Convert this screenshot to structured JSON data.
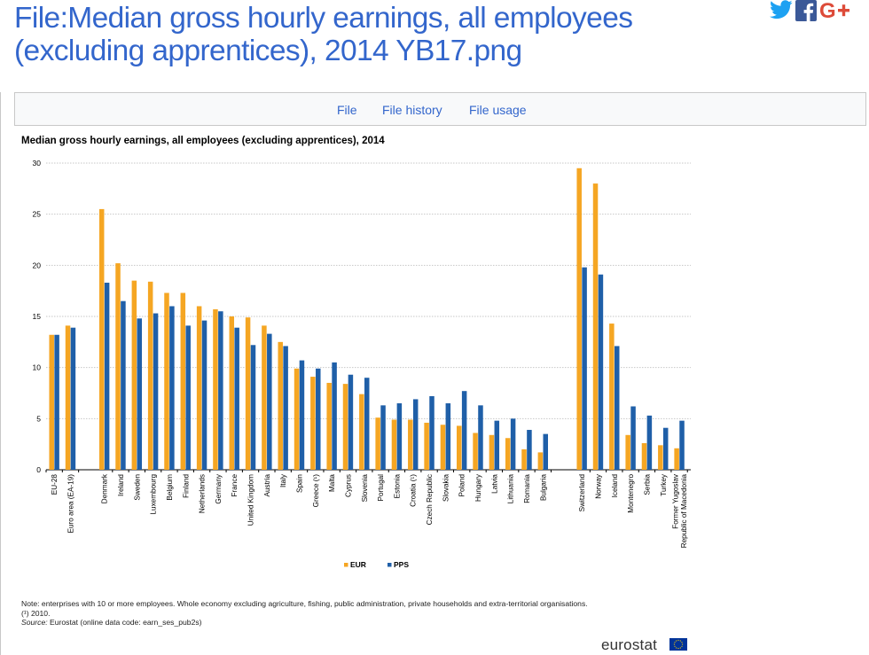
{
  "page": {
    "title": "File:Median gross hourly earnings, all employees (excluding apprentices), 2014 YB17.png"
  },
  "social": [
    {
      "name": "twitter-icon",
      "color": "#1da1f2"
    },
    {
      "name": "facebook-icon",
      "color": "#3b5998"
    },
    {
      "name": "google-plus-icon",
      "color": "#dd4b39"
    }
  ],
  "tabs": [
    {
      "label": "File"
    },
    {
      "label": "File history"
    },
    {
      "label": "File usage"
    }
  ],
  "chart_data": {
    "type": "bar",
    "title": "Median gross hourly earnings, all employees (excluding apprentices), 2014",
    "xlabel": "",
    "ylabel": "",
    "ylim": [
      0,
      30
    ],
    "yticks": [
      0,
      5,
      10,
      15,
      20,
      25,
      30
    ],
    "grid": true,
    "legend_position": "bottom",
    "groups": [
      {
        "start": 0,
        "count": 2
      },
      {
        "start": 2,
        "count": 28
      },
      {
        "start": 30,
        "count": 7
      }
    ],
    "categories": [
      "EU-28",
      "Euro area (EA-19)",
      "Denmark",
      "Ireland",
      "Sweden",
      "Luxembourg",
      "Belgium",
      "Finland",
      "Netherlands",
      "Germany",
      "France",
      "United Kingdom",
      "Austria",
      "Italy",
      "Spain",
      "Greece (¹)",
      "Malta",
      "Cyprus",
      "Slovenia",
      "Portugal",
      "Estonia",
      "Croatia (¹)",
      "Czech Republic",
      "Slovakia",
      "Poland",
      "Hungary",
      "Latvia",
      "Lithuania",
      "Romania",
      "Bulgaria",
      "Switzerland",
      "Norway",
      "Iceland",
      "Montenegro",
      "Serbia",
      "Turkey",
      "Former Yugoslav|Republic of Macedonia"
    ],
    "series": [
      {
        "name": "EUR",
        "color": "#f5a623",
        "values": [
          13.2,
          14.1,
          25.5,
          20.2,
          18.5,
          18.4,
          17.3,
          17.3,
          16.0,
          15.7,
          15.0,
          14.9,
          14.1,
          12.5,
          9.9,
          9.1,
          8.5,
          8.4,
          7.4,
          5.1,
          4.9,
          4.9,
          4.6,
          4.4,
          4.3,
          3.6,
          3.4,
          3.1,
          2.0,
          1.7,
          29.5,
          28.0,
          14.3,
          3.4,
          2.6,
          2.4,
          2.1
        ]
      },
      {
        "name": "PPS",
        "color": "#1f5fa8",
        "values": [
          13.2,
          13.9,
          18.3,
          16.5,
          14.8,
          15.3,
          16.0,
          14.1,
          14.6,
          15.5,
          13.9,
          12.2,
          13.3,
          12.1,
          10.7,
          9.9,
          10.5,
          9.3,
          9.0,
          6.3,
          6.5,
          6.9,
          7.2,
          6.5,
          7.7,
          6.3,
          4.8,
          5.0,
          3.9,
          3.5,
          19.8,
          19.1,
          12.1,
          6.2,
          5.3,
          4.1,
          4.8
        ]
      }
    ]
  },
  "notes": {
    "line1": "Note: enterprises with 10 or more employees. Whole economy excluding agriculture, fishing, public administration, private households and extra-territorial organisations.",
    "line2": "(¹) 2010.",
    "source_label": "Source:",
    "source_text": " Eurostat (online data code: earn_ses_pub2s)"
  },
  "brand": {
    "name": "eurostat",
    "flag_color": "#003399",
    "star_color": "#ffcc00"
  }
}
